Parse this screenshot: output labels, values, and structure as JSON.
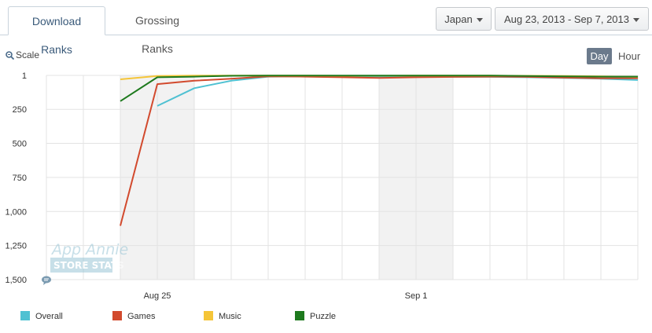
{
  "tabs": [
    {
      "label": "Download Ranks",
      "active": true
    },
    {
      "label": "Grossing Ranks",
      "active": false
    }
  ],
  "country_select": {
    "value": "Japan"
  },
  "date_range_select": {
    "value": "Aug 23, 2013 - Sep 7, 2013"
  },
  "scale_label": "Scale",
  "granularity": {
    "day": "Day",
    "hour": "Hour",
    "selected": "Day"
  },
  "watermark": {
    "line1": "App Annie",
    "line2": "STORE STATS"
  },
  "icons": {
    "scale": "zoom-icon",
    "comment": "comment-icon",
    "dropdown": "caret-down-icon"
  },
  "chart_data": {
    "type": "line",
    "x": [
      "Aug 23",
      "Aug 24",
      "Aug 25",
      "Aug 26",
      "Aug 27",
      "Aug 28",
      "Aug 29",
      "Aug 30",
      "Aug 31",
      "Sep 1",
      "Sep 2",
      "Sep 3",
      "Sep 4",
      "Sep 5",
      "Sep 6",
      "Sep 7"
    ],
    "x_tick_labels": [
      {
        "x": "Aug 25",
        "label": "Aug 25"
      },
      {
        "x": "Sep 1",
        "label": "Sep 1"
      }
    ],
    "y_ticks": [
      1,
      250,
      500,
      750,
      1000,
      1250,
      1500
    ],
    "y_tick_labels": [
      "1",
      "250",
      "500",
      "750",
      "1,000",
      "1,250",
      "1,500"
    ],
    "ylim": [
      1,
      1500
    ],
    "y_reversed": true,
    "grid": true,
    "shaded_ranges": [
      [
        "Aug 24",
        "Aug 26"
      ],
      [
        "Aug 31",
        "Sep 2"
      ]
    ],
    "legend_position": "bottom-left",
    "series": [
      {
        "name": "Overall",
        "color": "#4fc1d2",
        "values": [
          null,
          null,
          225,
          95,
          40,
          10,
          8,
          10,
          12,
          12,
          12,
          12,
          15,
          20,
          25,
          35
        ]
      },
      {
        "name": "Games",
        "color": "#d24a2e",
        "values": [
          null,
          1105,
          65,
          40,
          25,
          8,
          10,
          15,
          20,
          15,
          12,
          10,
          12,
          18,
          22,
          22
        ]
      },
      {
        "name": "Music",
        "color": "#f5c538",
        "values": [
          null,
          30,
          5,
          3,
          2,
          2,
          3,
          4,
          4,
          3,
          3,
          3,
          4,
          5,
          8,
          12
        ]
      },
      {
        "name": "Puzzle",
        "color": "#1e7a1e",
        "values": [
          null,
          190,
          15,
          10,
          4,
          3,
          3,
          3,
          3,
          3,
          3,
          3,
          5,
          8,
          10,
          10
        ]
      }
    ]
  }
}
